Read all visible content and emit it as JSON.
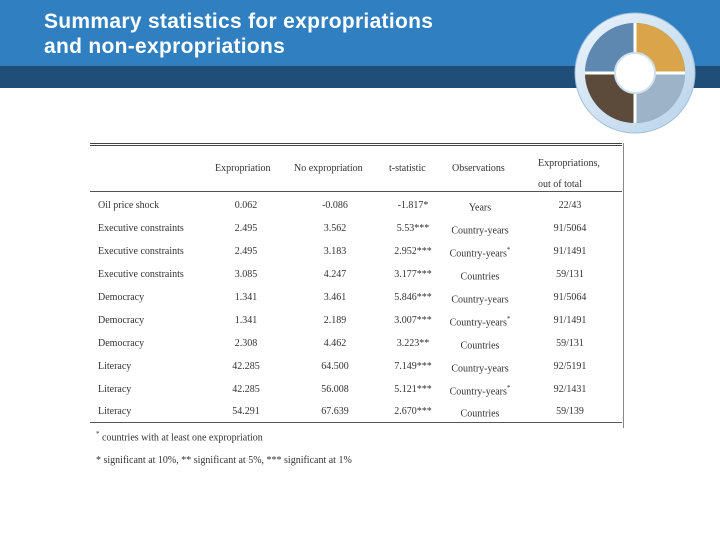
{
  "slide": {
    "title_line1": "Summary statistics for expropriations",
    "title_line2": "and non-expropriations",
    "colors": {
      "header": "#2f7fc1",
      "band": "#1f4e79",
      "accent": "#f5a623"
    },
    "logo_icon": "business-collage-logo-icon"
  },
  "table": {
    "headers": [
      "Expropriation",
      "No expropriation",
      "t-statistic",
      "Observations"
    ],
    "last_header_line1": "Expropriations,",
    "last_header_line2": "out of total",
    "rows": [
      {
        "label": "Oil price shock",
        "exp": "0.062",
        "noexp": "-0.086",
        "t": "-1.817*",
        "obs": "Years",
        "obs_mark": "",
        "frac": "22/43"
      },
      {
        "label": "Executive constraints",
        "exp": "2.495",
        "noexp": "3.562",
        "t": "5.53***",
        "obs": "Country-years",
        "obs_mark": "",
        "frac": "91/5064"
      },
      {
        "label": "Executive constraints",
        "exp": "2.495",
        "noexp": "3.183",
        "t": "2.952***",
        "obs": "Country-years",
        "obs_mark": "*",
        "frac": "91/1491"
      },
      {
        "label": "Executive constraints",
        "exp": "3.085",
        "noexp": "4.247",
        "t": "3.177***",
        "obs": "Countries",
        "obs_mark": "",
        "frac": "59/131"
      },
      {
        "label": "Democracy",
        "exp": "1.341",
        "noexp": "3.461",
        "t": "5.846***",
        "obs": "Country-years",
        "obs_mark": "",
        "frac": "91/5064"
      },
      {
        "label": "Democracy",
        "exp": "1.341",
        "noexp": "2.189",
        "t": "3.007***",
        "obs": "Country-years",
        "obs_mark": "*",
        "frac": "91/1491"
      },
      {
        "label": "Democracy",
        "exp": "2.308",
        "noexp": "4.462",
        "t": "3.223**",
        "obs": "Countries",
        "obs_mark": "",
        "frac": "59/131"
      },
      {
        "label": "Literacy",
        "exp": "42.285",
        "noexp": "64.500",
        "t": "7.149***",
        "obs": "Country-years",
        "obs_mark": "",
        "frac": "92/5191"
      },
      {
        "label": "Literacy",
        "exp": "42.285",
        "noexp": "56.008",
        "t": "5.121***",
        "obs": "Country-years",
        "obs_mark": "*",
        "frac": "92/1431"
      },
      {
        "label": "Literacy",
        "exp": "54.291",
        "noexp": "67.639",
        "t": "2.670***",
        "obs": "Countries",
        "obs_mark": "",
        "frac": "59/139"
      }
    ],
    "note1_mark": "*",
    "note1": "countries with at least one expropriation",
    "note2": "* significant at 10%, ** significant at 5%, *** significant at 1%"
  }
}
